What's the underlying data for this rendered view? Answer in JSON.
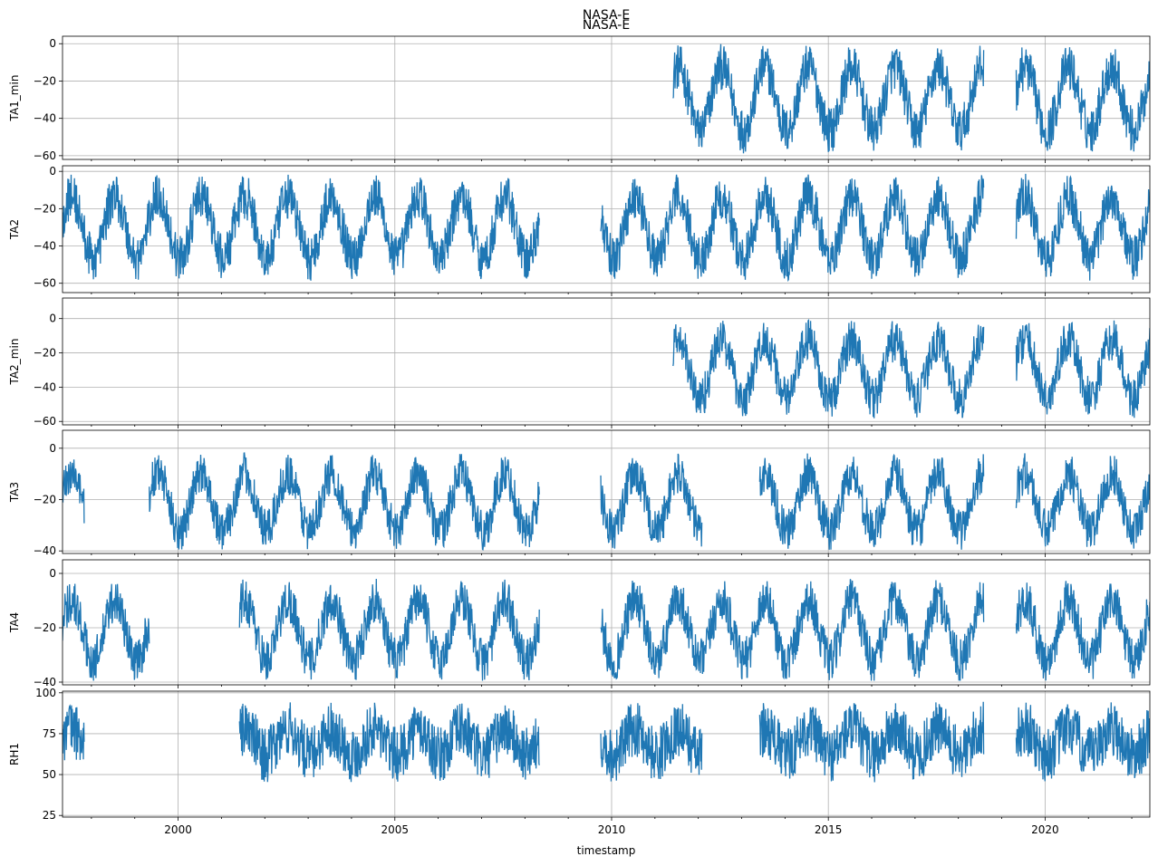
{
  "figure": {
    "title_top": "NASA-E",
    "title_bottom": "NASA-E",
    "xlabel": "timestamp",
    "line_color": "#1f77b4",
    "grid": true
  },
  "chart_data": {
    "type": "line",
    "x_range": [
      "1997-05-01",
      "2022-06-01"
    ],
    "x_ticks": [
      "2000",
      "2005",
      "2010",
      "2015",
      "2020"
    ],
    "shared_x": true,
    "panels": [
      {
        "name": "TA1_min",
        "ylabel": "TA1_min",
        "ylim": [
          -62,
          4
        ],
        "yticks": [
          0,
          -20,
          -40,
          -60
        ],
        "segments": [
          [
            "2011-06",
            "2018-08"
          ],
          [
            "2019-05",
            "2022-06"
          ]
        ],
        "envelope": {
          "summer_max": -2,
          "winter_min": -57
        }
      },
      {
        "name": "TA2",
        "ylabel": "TA2",
        "ylim": [
          -65,
          3
        ],
        "yticks": [
          0,
          -20,
          -40,
          -60
        ],
        "segments": [
          [
            "1997-05",
            "2008-05"
          ],
          [
            "2009-10",
            "2018-08"
          ],
          [
            "2019-05",
            "2022-06"
          ]
        ],
        "envelope": {
          "summer_max": -3,
          "winter_min": -57
        }
      },
      {
        "name": "TA2_min",
        "ylabel": "TA2_min",
        "ylim": [
          -62,
          12
        ],
        "yticks": [
          0,
          -20,
          -40,
          -60
        ],
        "segments": [
          [
            "2011-06",
            "2018-08"
          ],
          [
            "2019-05",
            "2022-06"
          ]
        ],
        "envelope": {
          "summer_max": -2,
          "winter_min": -57
        }
      },
      {
        "name": "TA3",
        "ylabel": "TA3",
        "ylim": [
          -41,
          7
        ],
        "yticks": [
          0,
          -20,
          -40
        ],
        "segments": [
          [
            "1997-05",
            "1997-11"
          ],
          [
            "1999-05",
            "2008-05"
          ],
          [
            "2009-10",
            "2012-02"
          ],
          [
            "2013-06",
            "2018-08"
          ],
          [
            "2019-05",
            "2022-06"
          ]
        ],
        "envelope": {
          "summer_max": -3,
          "winter_min": -39
        }
      },
      {
        "name": "TA4",
        "ylabel": "TA4",
        "ylim": [
          -41,
          5
        ],
        "yticks": [
          0,
          -20,
          -40
        ],
        "segments": [
          [
            "1997-05",
            "1999-05"
          ],
          [
            "2001-06",
            "2008-05"
          ],
          [
            "2009-10",
            "2018-08"
          ],
          [
            "2019-05",
            "2022-06"
          ]
        ],
        "envelope": {
          "summer_max": -3,
          "winter_min": -39
        }
      },
      {
        "name": "RH1",
        "ylabel": "RH1",
        "ylim": [
          24,
          101
        ],
        "yticks": [
          100,
          75,
          50,
          25
        ],
        "segments": [
          [
            "1997-05",
            "1997-11"
          ],
          [
            "2001-06",
            "2008-05"
          ],
          [
            "2009-10",
            "2012-02"
          ],
          [
            "2013-06",
            "2018-08"
          ],
          [
            "2019-05",
            "2022-06"
          ]
        ],
        "envelope": {
          "summer_max": 92,
          "winter_min": 45
        }
      }
    ]
  }
}
